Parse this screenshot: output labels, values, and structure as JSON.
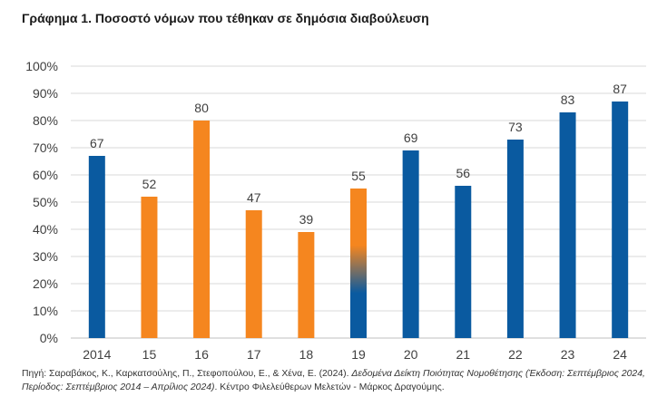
{
  "chart_data": {
    "type": "bar",
    "title": "Γράφημα 1. Ποσοστό νόμων που τέθηκαν σε δημόσια διαβούλευση",
    "categories": [
      "2014",
      "15",
      "16",
      "17",
      "18",
      "19",
      "20",
      "21",
      "22",
      "23",
      "24"
    ],
    "values": [
      67,
      52,
      80,
      47,
      39,
      55,
      69,
      56,
      73,
      83,
      87
    ],
    "bar_fill": [
      "blue",
      "orange",
      "orange",
      "orange",
      "orange",
      "orange-blue-gradient",
      "blue",
      "blue",
      "blue",
      "blue",
      "blue"
    ],
    "y_ticks": [
      "0%",
      "10%",
      "20%",
      "30%",
      "40%",
      "50%",
      "60%",
      "70%",
      "80%",
      "90%",
      "100%"
    ],
    "ylim": [
      0,
      100
    ],
    "y_unit": "%",
    "grid": true,
    "legend": "none"
  },
  "colors": {
    "blue": "#0a5aa0",
    "orange": "#f5861f",
    "grid": "#d9d9d9",
    "axis": "#bfbfbf",
    "label": "#404040"
  },
  "source": {
    "prefix": "Πηγή: Σαραβάκος, Κ., Καρκατσούλης, Π., Στεφοπούλου, Ε., & Χένα, Ε. (2024). ",
    "italic": "Δεδομένα Δείκτη Ποιότητας Νομοθέτησης (Έκδοση: Σεπτέμβριος 2024, Περίοδος: Σεπτέμβριος 2014 – Απρίλιος 2024)",
    "suffix": ". Κέντρο Φιλελεύθερων Μελετών - Μάρκος Δραγούμης."
  }
}
